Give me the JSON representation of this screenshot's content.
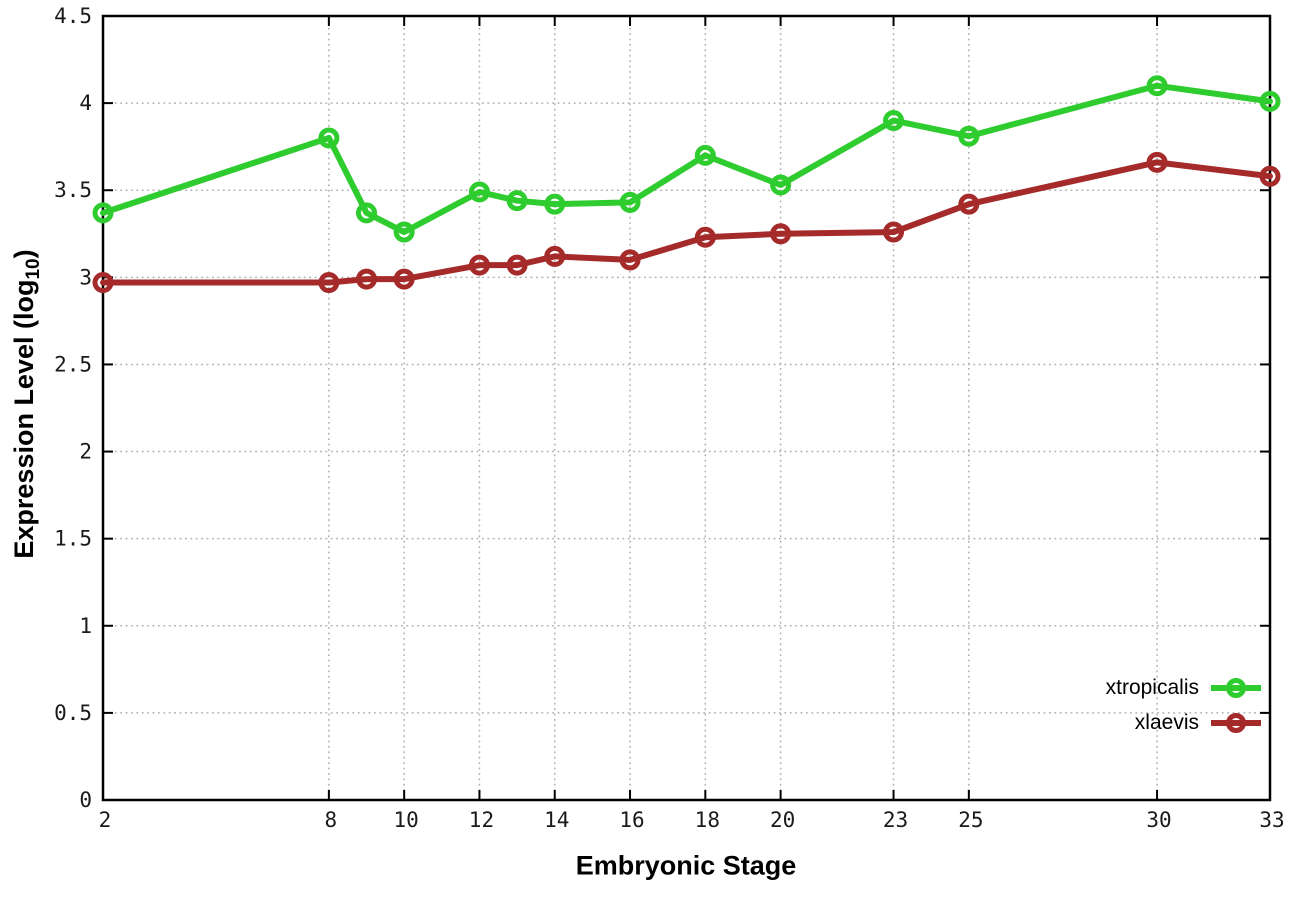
{
  "figure": {
    "background": "#ffffff",
    "frame_color": "#000000",
    "grid_color": "#b0b0b0",
    "tick_label_color": "#1a1a1a"
  },
  "chart_data": {
    "type": "line",
    "title": "",
    "xlabel": "Embryonic Stage",
    "ylabel": "Expression Level (log10)",
    "ylabel_parts": {
      "prefix": "Expression Level (log",
      "subscript": "10",
      "suffix": ")"
    },
    "xlim": [
      2,
      33
    ],
    "ylim": [
      0,
      4.5
    ],
    "grid": true,
    "legend_position": "bottom-right",
    "marker": "open-circle",
    "x": [
      2,
      8,
      9,
      10,
      12,
      13,
      14,
      16,
      18,
      20,
      23,
      25,
      30,
      33
    ],
    "x_tick_values": [
      2,
      8,
      10,
      12,
      14,
      16,
      18,
      20,
      23,
      25,
      30,
      33
    ],
    "x_tick_labels": [
      "2",
      "8",
      "10",
      "12",
      "14",
      "16",
      "18",
      "20",
      "23",
      "25",
      "30",
      "33"
    ],
    "y_tick_values": [
      0,
      0.5,
      1,
      1.5,
      2,
      2.5,
      3,
      3.5,
      4,
      4.5
    ],
    "y_tick_labels": [
      "0",
      "0.5",
      "1",
      "1.5",
      "2",
      "2.5",
      "3",
      "3.5",
      "4",
      "4.5"
    ],
    "series": [
      {
        "name": "xtropicalis",
        "color": "#2ecc2e",
        "values": [
          3.37,
          3.8,
          3.37,
          3.26,
          3.49,
          3.44,
          3.42,
          3.43,
          3.7,
          3.53,
          3.9,
          3.81,
          4.1,
          4.01
        ]
      },
      {
        "name": "xlaevis",
        "color": "#a52a2a",
        "values": [
          2.97,
          2.97,
          2.99,
          2.99,
          3.07,
          3.07,
          3.12,
          3.1,
          3.23,
          3.25,
          3.26,
          3.42,
          3.66,
          3.58
        ]
      }
    ]
  }
}
